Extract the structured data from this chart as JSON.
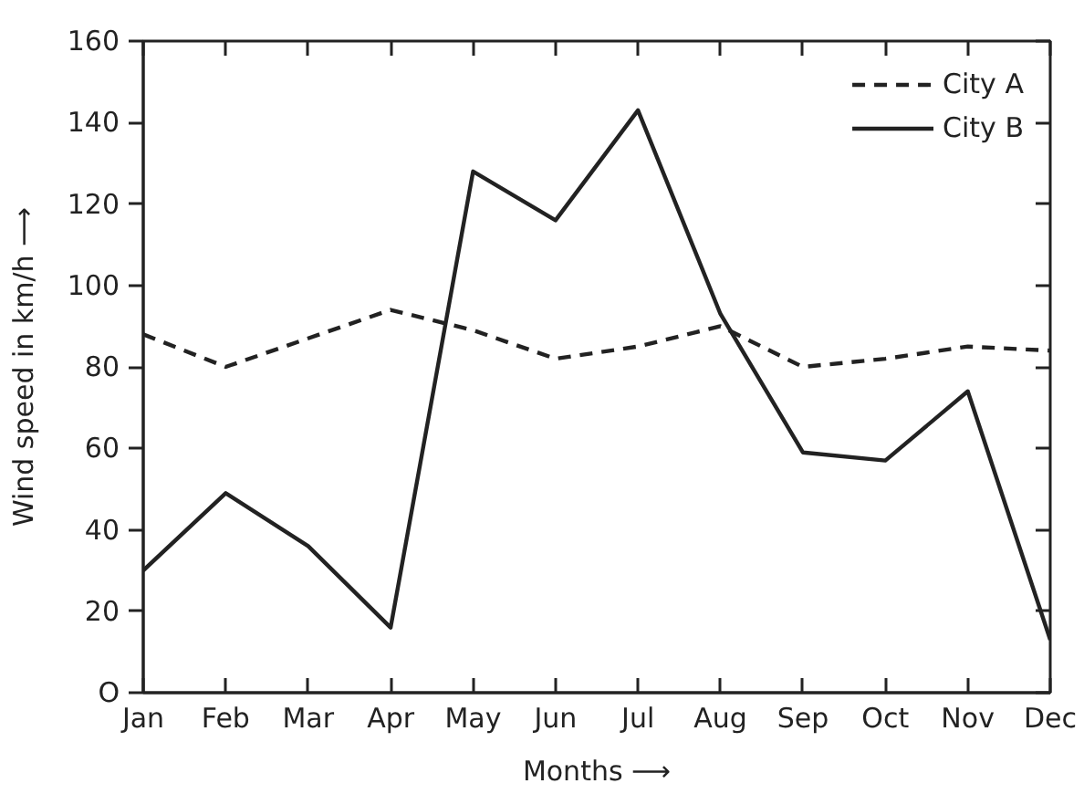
{
  "chart_data": {
    "type": "line",
    "xlabel": "Months ⟶",
    "ylabel": "Wind speed in km/h ⟶",
    "categories": [
      "Jan",
      "Feb",
      "Mar",
      "Apr",
      "May",
      "Jun",
      "Jul",
      "Aug",
      "Sep",
      "Oct",
      "Nov",
      "Dec"
    ],
    "ylim": [
      0,
      160
    ],
    "yticks": [
      {
        "value": 0,
        "label": "O"
      },
      20,
      40,
      60,
      80,
      100,
      120,
      140,
      160
    ],
    "legend": "top right",
    "series": [
      {
        "name": "City A",
        "color": "#222222",
        "line_style": "dashed",
        "values": [
          88,
          80,
          87,
          94,
          89,
          82,
          85,
          90,
          80,
          82,
          85,
          84
        ]
      },
      {
        "name": "City B",
        "color": "#222222",
        "line_style": "solid",
        "values": [
          30,
          49,
          36,
          16,
          128,
          116,
          143,
          93,
          59,
          57,
          74,
          13
        ]
      }
    ]
  }
}
